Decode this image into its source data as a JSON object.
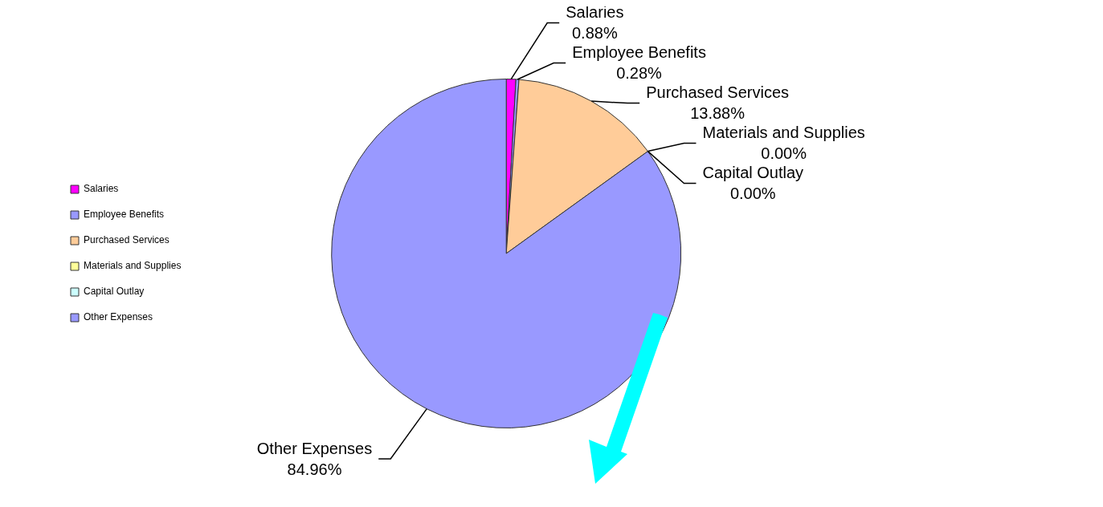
{
  "chart_data": {
    "type": "pie",
    "categories": [
      "Salaries",
      "Employee Benefits",
      "Purchased Services",
      "Materials and Supplies",
      "Capital Outlay",
      "Other Expenses"
    ],
    "values": [
      0.88,
      0.28,
      13.88,
      0,
      0,
      84.96
    ],
    "value_labels": [
      "0.88%",
      "0.28%",
      "13.88%",
      "0.00%",
      "0.00%",
      "84.96%"
    ],
    "colors": [
      "#ff00ff",
      "#9999ff",
      "#ffcc99",
      "#ffff99",
      "#ccffff",
      "#9999ff"
    ],
    "legend": "left"
  }
}
